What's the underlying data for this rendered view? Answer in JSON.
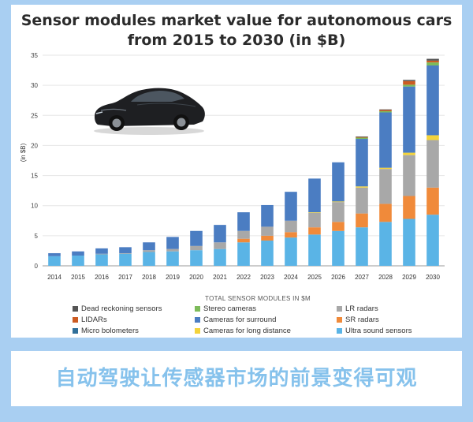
{
  "chart_data": {
    "type": "bar",
    "stacked": true,
    "title_line1": "Sensor modules market value for autonomous cars",
    "title_line2": "from 2015 to 2030 (in $B)",
    "ylabel": "(in $B)",
    "ylim": [
      0,
      35
    ],
    "yticks": [
      0,
      5,
      10,
      15,
      20,
      25,
      30,
      35
    ],
    "grid": true,
    "categories": [
      "2014",
      "2015",
      "2016",
      "2017",
      "2018",
      "2019",
      "2020",
      "2021",
      "2022",
      "2023",
      "2024",
      "2025",
      "2026",
      "2027",
      "2028",
      "2029",
      "2030"
    ],
    "legend_title": "TOTAL SENSOR MODULES IN $M",
    "series": [
      {
        "name": "Ultra sound sensors",
        "color": "#5ab4e6",
        "values": [
          1.6,
          1.7,
          1.9,
          2.0,
          2.3,
          2.4,
          2.6,
          2.8,
          3.9,
          4.2,
          4.7,
          5.2,
          5.8,
          6.4,
          7.3,
          7.8,
          8.5
        ]
      },
      {
        "name": "SR radars",
        "color": "#f08a3a",
        "values": [
          0,
          0,
          0,
          0,
          0,
          0,
          0,
          0,
          0.6,
          0.8,
          0.9,
          1.2,
          1.5,
          2.3,
          3.0,
          3.8,
          4.5
        ]
      },
      {
        "name": "LR radars",
        "color": "#a8a8a8",
        "values": [
          0,
          0,
          0.1,
          0.1,
          0.3,
          0.4,
          0.7,
          1.1,
          1.3,
          1.5,
          1.9,
          2.4,
          3.3,
          4.3,
          5.8,
          6.8,
          7.9
        ]
      },
      {
        "name": "Cameras for long distance",
        "color": "#f3d33b",
        "values": [
          0,
          0,
          0,
          0,
          0,
          0,
          0,
          0,
          0,
          0,
          0,
          0.1,
          0.1,
          0.2,
          0.2,
          0.4,
          0.8
        ]
      },
      {
        "name": "Cameras for surround",
        "color": "#4b7dc2",
        "values": [
          0.5,
          0.7,
          0.9,
          1.0,
          1.3,
          2.0,
          2.5,
          2.9,
          3.1,
          3.6,
          4.8,
          5.6,
          6.5,
          7.9,
          9.2,
          11.0,
          11.6
        ]
      },
      {
        "name": "Micro bolometers",
        "color": "#2f6f9a",
        "values": [
          0,
          0,
          0,
          0,
          0,
          0,
          0,
          0,
          0,
          0,
          0,
          0,
          0,
          0,
          0,
          0,
          0
        ]
      },
      {
        "name": "Stereo cameras",
        "color": "#7dbb5a",
        "values": [
          0,
          0,
          0,
          0,
          0,
          0,
          0,
          0,
          0,
          0,
          0,
          0,
          0,
          0.2,
          0.2,
          0.3,
          0.5
        ]
      },
      {
        "name": "LIDARs",
        "color": "#cc5b22",
        "values": [
          0,
          0,
          0,
          0,
          0,
          0,
          0,
          0,
          0,
          0,
          0,
          0,
          0,
          0.1,
          0.2,
          0.6,
          0.3
        ]
      },
      {
        "name": "Dead reckoning sensors",
        "color": "#555555",
        "values": [
          0,
          0,
          0,
          0,
          0,
          0,
          0,
          0,
          0,
          0,
          0,
          0,
          0,
          0.1,
          0.1,
          0.2,
          0.3
        ]
      }
    ]
  },
  "legend_items": [
    {
      "name": "Dead reckoning sensors",
      "color": "#555555"
    },
    {
      "name": "Stereo cameras",
      "color": "#7dbb5a"
    },
    {
      "name": "LR radars",
      "color": "#a8a8a8"
    },
    {
      "name": "LIDARs",
      "color": "#cc5b22"
    },
    {
      "name": "Cameras for surround",
      "color": "#4b7dc2"
    },
    {
      "name": "SR radars",
      "color": "#f08a3a"
    },
    {
      "name": "Micro bolometers",
      "color": "#2f6f9a"
    },
    {
      "name": "Cameras for long distance",
      "color": "#f3d33b"
    },
    {
      "name": "Ultra sound sensors",
      "color": "#5ab4e6"
    }
  ],
  "caption": "自动驾驶让传感器市场的前景变得可观",
  "colors": {
    "background": "#a9cff2",
    "caption_text": "#86c2ec",
    "grid": "#e6e6e6"
  }
}
